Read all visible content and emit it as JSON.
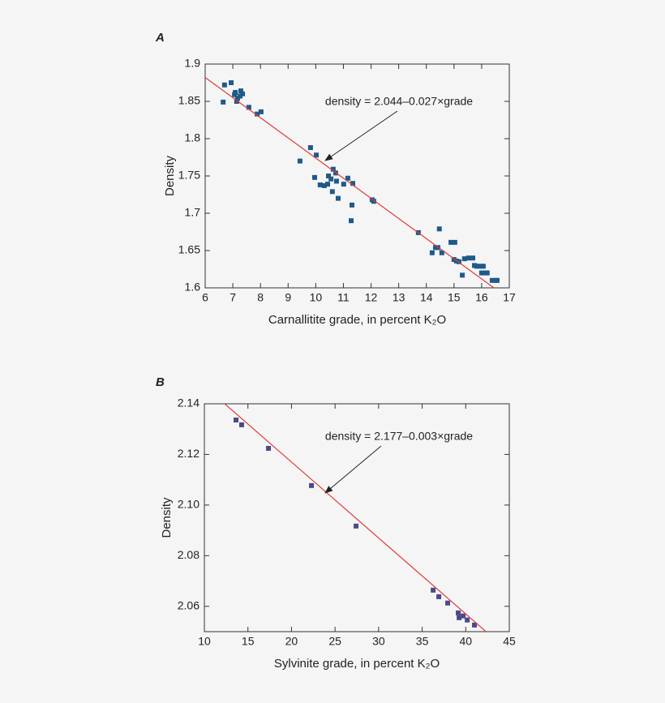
{
  "chart_data": [
    {
      "type": "scatter",
      "title": "A",
      "x_label": "Carnallitite grade, in percent K₂O",
      "y_label": "Density",
      "annotation": "density = 2.044–0.027×grade",
      "fit": {
        "intercept": 2.044,
        "slope": -0.027,
        "color": "#e03a3a"
      },
      "color": "#1f5a8a",
      "x": [
        6.65,
        6.7,
        6.94,
        7.06,
        7.09,
        7.14,
        7.17,
        7.26,
        7.29,
        7.35,
        7.58,
        7.88,
        8.02,
        9.43,
        9.81,
        10.02,
        9.96,
        10.16,
        10.31,
        10.43,
        10.46,
        10.55,
        10.6,
        10.63,
        10.72,
        10.75,
        10.81,
        11.01,
        11.16,
        11.34,
        11.31,
        11.28,
        12.04,
        12.1,
        13.71,
        14.21,
        14.33,
        14.42,
        14.47,
        14.56,
        14.89,
        15.03,
        15.0,
        15.09,
        15.18,
        15.3,
        15.38,
        15.53,
        15.68,
        15.74,
        15.82,
        15.94,
        16.06,
        16.0,
        16.12,
        16.2,
        16.38,
        16.5,
        16.56
      ],
      "values": [
        1.849,
        1.872,
        1.875,
        1.859,
        1.862,
        1.85,
        1.854,
        1.857,
        1.864,
        1.86,
        1.842,
        1.833,
        1.836,
        1.77,
        1.788,
        1.778,
        1.748,
        1.738,
        1.737,
        1.739,
        1.75,
        1.746,
        1.729,
        1.759,
        1.754,
        1.743,
        1.72,
        1.739,
        1.747,
        1.74,
        1.711,
        1.69,
        1.718,
        1.716,
        1.674,
        1.647,
        1.654,
        1.654,
        1.679,
        1.647,
        1.661,
        1.661,
        1.638,
        1.636,
        1.635,
        1.617,
        1.639,
        1.64,
        1.64,
        1.63,
        1.629,
        1.629,
        1.629,
        1.62,
        1.62,
        1.62,
        1.61,
        1.61,
        1.61
      ],
      "xlim": [
        6,
        17
      ],
      "xticks": [
        6,
        7,
        8,
        9,
        10,
        11,
        12,
        13,
        14,
        15,
        16,
        17
      ],
      "ylim": [
        1.6,
        1.9
      ],
      "yticks": [
        1.6,
        1.65,
        1.7,
        1.75,
        1.8,
        1.85,
        1.9
      ]
    },
    {
      "type": "scatter",
      "title": "B",
      "x_label": "Sylvinite grade, in percent K₂O",
      "y_label": "Density",
      "annotation": "density = 2.177–0.003×grade",
      "fit": {
        "intercept": 2.177,
        "slope": -0.003,
        "color": "#e03a3a"
      },
      "color": "#4a4a8a",
      "x": [
        13.63,
        14.28,
        17.36,
        22.29,
        27.41,
        36.26,
        36.91,
        37.93,
        39.14,
        39.24,
        39.7,
        40.17,
        41.0
      ],
      "values": [
        2.1336,
        2.1317,
        2.1224,
        2.1077,
        2.0917,
        2.0664,
        2.0638,
        2.0613,
        2.0574,
        2.0555,
        2.0562,
        2.0546,
        2.0526
      ],
      "xlim": [
        10,
        45
      ],
      "xticks": [
        10,
        15,
        20,
        25,
        30,
        35,
        40,
        45
      ],
      "ylim": [
        2.05,
        2.14
      ],
      "yticks": [
        2.06,
        2.08,
        {
          "value": 2.1,
          "label": "2.10"
        },
        2.12,
        2.14
      ]
    }
  ]
}
